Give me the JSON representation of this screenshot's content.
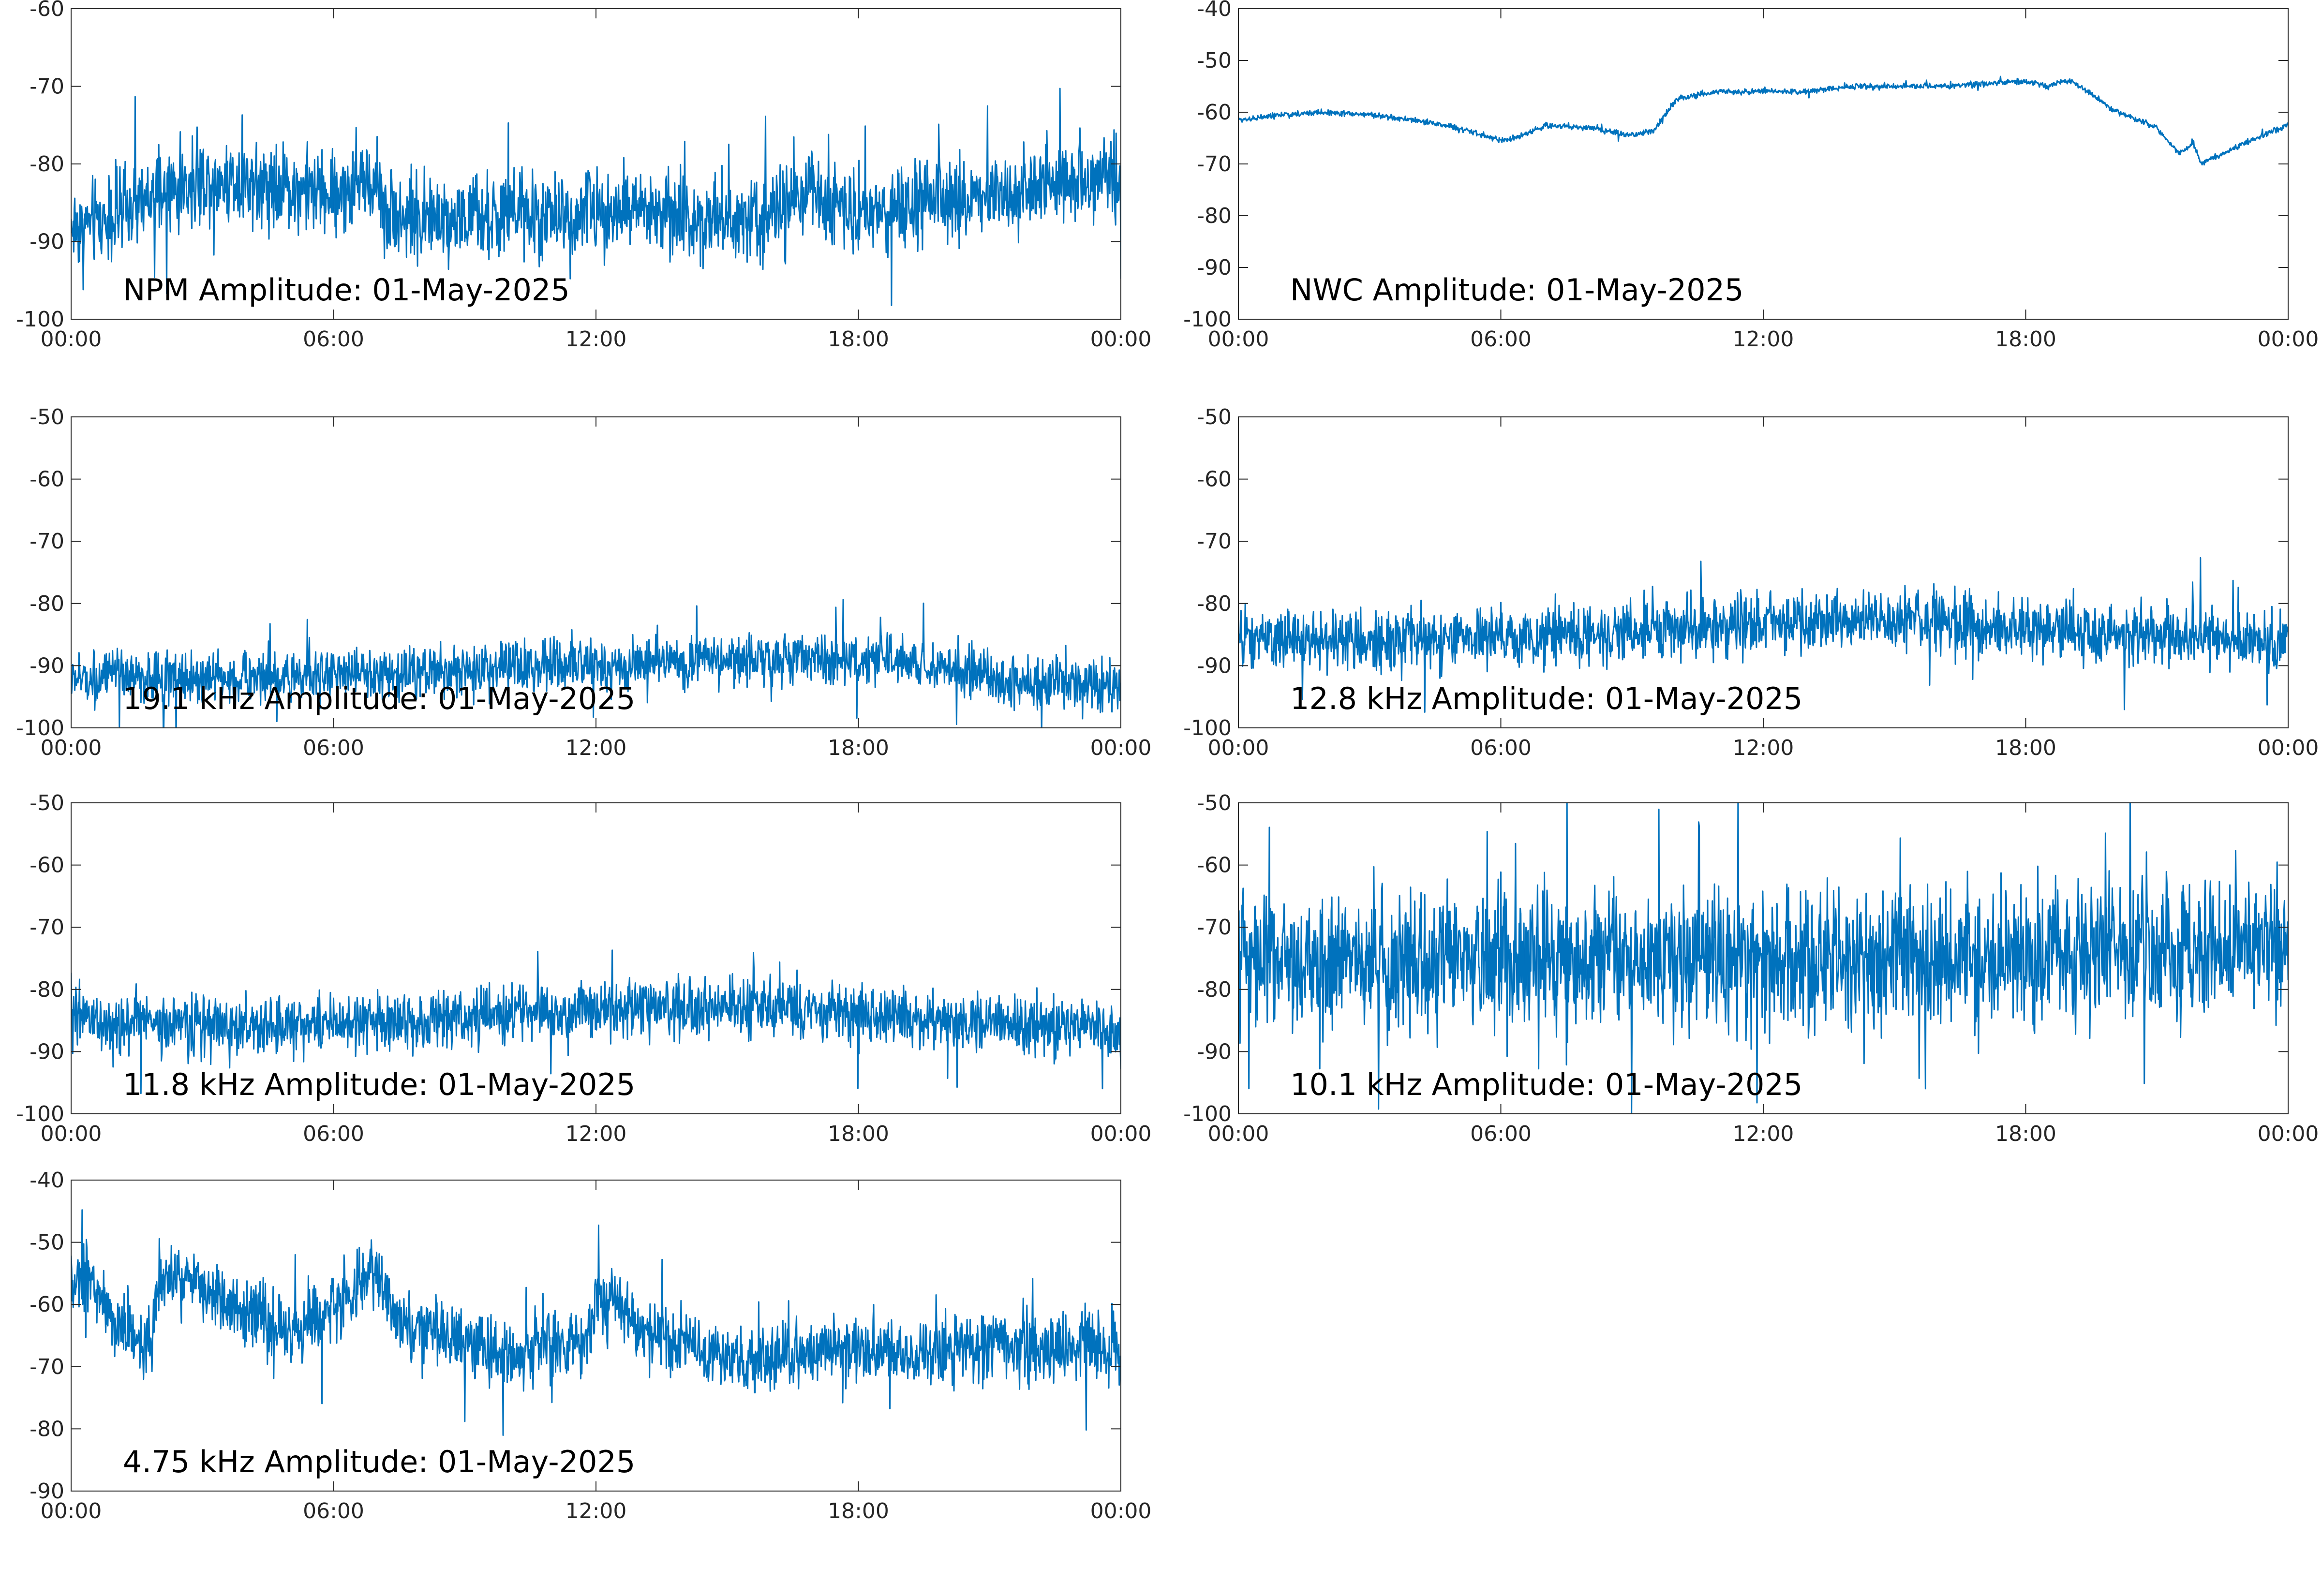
{
  "figure": {
    "line_color": "#0072BD",
    "axis_color": "#262626",
    "background": "#ffffff"
  },
  "chart_data": [
    {
      "type": "line",
      "title": "NPM Amplitude: 01-May-2025",
      "xlim": [
        "00:00",
        "24:00"
      ],
      "x_ticks": [
        "00:00",
        "06:00",
        "12:00",
        "18:00",
        "00:00"
      ],
      "ylim": [
        -100,
        -60
      ],
      "y_ticks": [
        "-60",
        "-70",
        "-80",
        "-90",
        "-100"
      ],
      "grid": false,
      "series": [
        {
          "x": [
            "00:00",
            "01:00",
            "02:00",
            "02:30",
            "03:00",
            "04:00",
            "05:00",
            "06:00",
            "06:30",
            "07:00",
            "07:10",
            "08:00",
            "09:00",
            "10:00",
            "11:00",
            "12:00",
            "13:00",
            "14:00",
            "15:00",
            "16:00",
            "17:00",
            "18:00",
            "19:00",
            "20:00",
            "21:00",
            "22:00",
            "23:00",
            "24:00"
          ],
          "values": [
            -88,
            -87,
            -84,
            -83,
            -82,
            -82,
            -83,
            -84,
            -83,
            -82,
            -86,
            -87,
            -87,
            -87,
            -87,
            -86,
            -86,
            -87,
            -87,
            -86,
            -84,
            -86,
            -86,
            -85,
            -84,
            -83,
            -82,
            -81
          ],
          "noise": 4
        }
      ]
    },
    {
      "type": "line",
      "title": "NWC Amplitude: 01-May-2025",
      "xlim": [
        "00:00",
        "24:00"
      ],
      "x_ticks": [
        "00:00",
        "06:00",
        "12:00",
        "18:00",
        "00:00"
      ],
      "ylim": [
        -100,
        -40
      ],
      "y_ticks": [
        "-40",
        "-50",
        "-60",
        "-70",
        "-80",
        "-90",
        "-100"
      ],
      "grid": false,
      "series": [
        {
          "x": [
            "00:00",
            "01:00",
            "02:00",
            "03:00",
            "04:00",
            "05:00",
            "06:00",
            "06:30",
            "07:00",
            "08:00",
            "09:00",
            "09:30",
            "10:00",
            "11:00",
            "12:00",
            "13:00",
            "14:00",
            "15:00",
            "16:00",
            "17:00",
            "18:00",
            "18:30",
            "19:00",
            "19:30",
            "20:00",
            "21:00",
            "21:30",
            "21:50",
            "22:00",
            "22:30",
            "23:00",
            "24:00"
          ],
          "values": [
            -61.5,
            -60.5,
            -60,
            -60.5,
            -61.5,
            -63,
            -65.5,
            -64.5,
            -62.5,
            -63,
            -64.5,
            -63.5,
            -57.5,
            -56,
            -56,
            -56,
            -55,
            -55,
            -55,
            -54.5,
            -54,
            -55,
            -53.8,
            -56.5,
            -59.5,
            -63,
            -68,
            -66,
            -70,
            -68,
            -66,
            -62.5
          ],
          "noise": 0.4
        }
      ]
    },
    {
      "type": "line",
      "title": "19.1 kHz Amplitude: 01-May-2025",
      "xlim": [
        "00:00",
        "24:00"
      ],
      "x_ticks": [
        "00:00",
        "06:00",
        "12:00",
        "18:00",
        "00:00"
      ],
      "ylim": [
        -100,
        -50
      ],
      "y_ticks": [
        "-50",
        "-60",
        "-70",
        "-80",
        "-90",
        "-100"
      ],
      "grid": false,
      "series": [
        {
          "x": [
            "00:00",
            "04:00",
            "08:00",
            "12:00",
            "16:00",
            "18:00",
            "20:00",
            "21:00",
            "22:00",
            "23:00",
            "24:00"
          ],
          "values": [
            -92,
            -92,
            -91,
            -90,
            -89,
            -89,
            -90,
            -92,
            -93,
            -93,
            -93
          ],
          "noise": 3
        }
      ]
    },
    {
      "type": "line",
      "title": "12.8 kHz Amplitude: 01-May-2025",
      "xlim": [
        "00:00",
        "24:00"
      ],
      "x_ticks": [
        "00:00",
        "06:00",
        "12:00",
        "18:00",
        "00:00"
      ],
      "ylim": [
        -100,
        -50
      ],
      "y_ticks": [
        "-50",
        "-60",
        "-70",
        "-80",
        "-90",
        "-100"
      ],
      "grid": false,
      "series": [
        {
          "x": [
            "00:00",
            "04:00",
            "08:00",
            "12:00",
            "16:00",
            "20:00",
            "24:00"
          ],
          "values": [
            -86,
            -86,
            -85,
            -83,
            -83,
            -85,
            -86
          ],
          "noise": 3.5
        }
      ]
    },
    {
      "type": "line",
      "title": "11.8 kHz Amplitude: 01-May-2025",
      "xlim": [
        "00:00",
        "24:00"
      ],
      "x_ticks": [
        "00:00",
        "06:00",
        "12:00",
        "18:00",
        "00:00"
      ],
      "ylim": [
        -100,
        -50
      ],
      "y_ticks": [
        "-50",
        "-60",
        "-70",
        "-80",
        "-90",
        "-100"
      ],
      "grid": false,
      "series": [
        {
          "x": [
            "00:00",
            "04:00",
            "08:00",
            "12:00",
            "16:00",
            "20:00",
            "24:00"
          ],
          "values": [
            -85,
            -86,
            -85,
            -83,
            -83,
            -85,
            -86
          ],
          "noise": 3.5
        }
      ]
    },
    {
      "type": "line",
      "title": "10.1 kHz Amplitude: 01-May-2025",
      "xlim": [
        "00:00",
        "24:00"
      ],
      "x_ticks": [
        "00:00",
        "06:00",
        "12:00",
        "18:00",
        "00:00"
      ],
      "ylim": [
        -100,
        -50
      ],
      "y_ticks": [
        "-50",
        "-60",
        "-70",
        "-80",
        "-90",
        "-100"
      ],
      "grid": false,
      "series": [
        {
          "x": [
            "00:00",
            "06:00",
            "12:00",
            "18:00",
            "24:00"
          ],
          "values": [
            -75,
            -76,
            -75,
            -75,
            -73
          ],
          "noise": 8
        }
      ]
    },
    {
      "type": "line",
      "title": "4.75 kHz Amplitude: 01-May-2025",
      "xlim": [
        "00:00",
        "24:00"
      ],
      "x_ticks": [
        "00:00",
        "06:00",
        "12:00",
        "18:00",
        "00:00"
      ],
      "ylim": [
        -90,
        -40
      ],
      "y_ticks": [
        "-40",
        "-50",
        "-60",
        "-70",
        "-80",
        "-90"
      ],
      "grid": false,
      "series": [
        {
          "x": [
            "00:00",
            "00:20",
            "01:00",
            "01:50",
            "02:00",
            "02:30",
            "03:00",
            "04:00",
            "05:00",
            "05:30",
            "06:00",
            "06:30",
            "07:00",
            "07:30",
            "08:00",
            "09:00",
            "10:00",
            "11:00",
            "11:45",
            "12:00",
            "12:30",
            "13:00",
            "14:00",
            "15:00",
            "16:00",
            "17:00",
            "18:00",
            "19:00",
            "20:00",
            "21:00",
            "22:00",
            "23:00",
            "24:00"
          ],
          "values": [
            -57,
            -55,
            -63,
            -66,
            -57,
            -56,
            -58,
            -61,
            -65,
            -63,
            -60,
            -57,
            -55,
            -63,
            -64,
            -66,
            -68,
            -67,
            -67,
            -60,
            -60,
            -64,
            -66,
            -69,
            -69,
            -67,
            -67,
            -68,
            -67,
            -67,
            -67,
            -67,
            -67
          ],
          "noise": 4
        }
      ]
    }
  ]
}
